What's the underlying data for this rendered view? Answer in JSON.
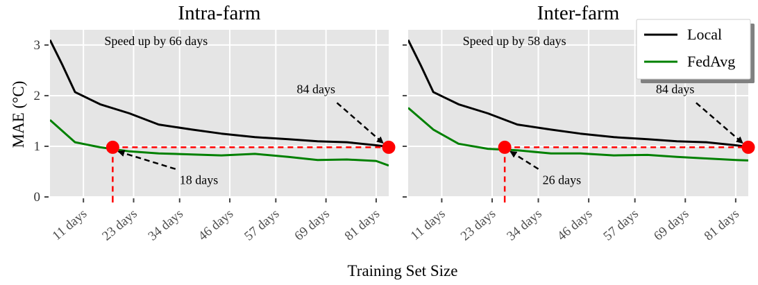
{
  "chart_data": [
    {
      "type": "line",
      "title": "Intra-farm",
      "xlabel": "Training Set Size",
      "ylabel": "MAE (°C)",
      "xlim": [
        3,
        84
      ],
      "ylim": [
        0,
        3.3
      ],
      "xticks": [
        11,
        23,
        34,
        46,
        57,
        69,
        81
      ],
      "xtick_labels": [
        "11 days",
        "23 days",
        "34 days",
        "46 days",
        "57 days",
        "69 days",
        "81 days"
      ],
      "yticks": [
        0,
        1,
        2,
        3
      ],
      "ytick_labels": [
        "0",
        "1",
        "2",
        "3"
      ],
      "grid": true,
      "series": [
        {
          "name": "Local",
          "color": "#000000",
          "x": [
            3,
            6,
            9,
            15,
            22,
            29,
            37,
            44,
            52,
            60,
            67,
            74,
            81,
            84
          ],
          "y": [
            3.1,
            2.6,
            2.07,
            1.83,
            1.65,
            1.43,
            1.33,
            1.25,
            1.18,
            1.14,
            1.1,
            1.08,
            1.02,
            0.99
          ]
        },
        {
          "name": "FedAvg",
          "color": "#008000",
          "x": [
            3,
            9,
            15,
            22,
            29,
            37,
            44,
            52,
            60,
            67,
            74,
            81,
            84
          ],
          "y": [
            1.52,
            1.08,
            0.98,
            0.9,
            0.86,
            0.84,
            0.82,
            0.85,
            0.79,
            0.73,
            0.74,
            0.71,
            0.62
          ]
        }
      ],
      "markers": [
        {
          "x": 18,
          "y": 0.98,
          "color": "#ff0000"
        },
        {
          "x": 84,
          "y": 0.98,
          "color": "#ff0000"
        }
      ],
      "annotations": [
        {
          "text": "Speed up by 66 days",
          "x": 16,
          "y": 3.0
        },
        {
          "text": "84 days",
          "x": 62,
          "y": 2.05,
          "arrow_to": [
            84,
            0.98
          ]
        },
        {
          "text": "18 days",
          "x": 34,
          "y": 0.25,
          "arrow_to": [
            18,
            0.98
          ]
        }
      ]
    },
    {
      "type": "line",
      "title": "Inter-farm",
      "xlabel": "Training Set Size",
      "ylim": [
        0,
        3.3
      ],
      "xlim": [
        3,
        84
      ],
      "xticks": [
        11,
        23,
        34,
        46,
        57,
        69,
        81
      ],
      "xtick_labels": [
        "11 days",
        "23 days",
        "34 days",
        "46 days",
        "57 days",
        "69 days",
        "81 days"
      ],
      "yticks": [
        0,
        1,
        2,
        3
      ],
      "grid": true,
      "series": [
        {
          "name": "Local",
          "color": "#000000",
          "x": [
            3,
            6,
            9,
            15,
            22,
            29,
            37,
            44,
            52,
            60,
            67,
            74,
            81,
            84
          ],
          "y": [
            3.1,
            2.6,
            2.07,
            1.83,
            1.65,
            1.43,
            1.33,
            1.25,
            1.18,
            1.14,
            1.1,
            1.08,
            1.02,
            0.99
          ]
        },
        {
          "name": "FedAvg",
          "color": "#008000",
          "x": [
            3,
            9,
            15,
            22,
            29,
            37,
            44,
            52,
            60,
            67,
            74,
            81,
            84
          ],
          "y": [
            1.76,
            1.33,
            1.05,
            0.95,
            0.92,
            0.86,
            0.86,
            0.82,
            0.83,
            0.79,
            0.76,
            0.73,
            0.72
          ]
        }
      ],
      "markers": [
        {
          "x": 26,
          "y": 0.98,
          "color": "#ff0000"
        },
        {
          "x": 84,
          "y": 0.98,
          "color": "#ff0000"
        }
      ],
      "annotations": [
        {
          "text": "Speed up by 58 days",
          "x": 16,
          "y": 3.0
        },
        {
          "text": "84 days",
          "x": 62,
          "y": 2.05,
          "arrow_to": [
            84,
            0.98
          ]
        },
        {
          "text": "26 days",
          "x": 35,
          "y": 0.25,
          "arrow_to": [
            26,
            0.98
          ]
        }
      ]
    }
  ],
  "legend": {
    "placement": "top-right",
    "items": [
      {
        "label": "Local",
        "color": "#000000"
      },
      {
        "label": "FedAvg",
        "color": "#008000"
      }
    ]
  }
}
